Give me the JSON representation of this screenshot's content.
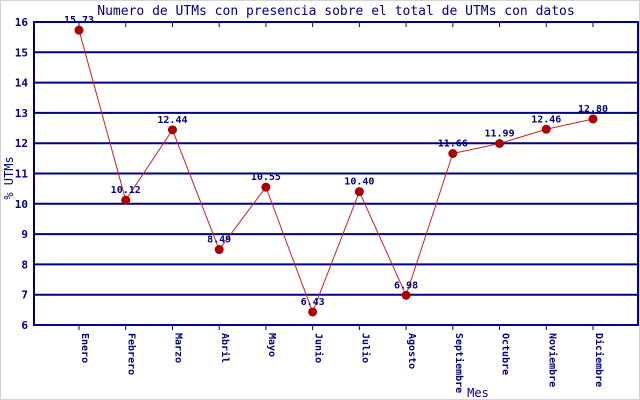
{
  "chart_data": {
    "type": "line",
    "title": "Numero de UTMs con presencia sobre el total de UTMs con datos",
    "xlabel": "Mes",
    "ylabel": "% UTMs",
    "categories": [
      "Enero",
      "Febrero",
      "Marzo",
      "Abril",
      "Mayo",
      "Junio",
      "Julio",
      "Agosto",
      "Septiembre",
      "Octubre",
      "Noviembre",
      "Diciembre"
    ],
    "values": [
      15.73,
      10.12,
      12.44,
      8.49,
      10.55,
      6.43,
      10.4,
      6.98,
      11.66,
      11.99,
      12.46,
      12.8
    ],
    "value_labels": [
      "15.73",
      "10.12",
      "12.44",
      "8.49",
      "10.55",
      "6.43",
      "10.40",
      "6.98",
      "11.66",
      "11.99",
      "12.46",
      "12.80"
    ],
    "ylim": [
      6,
      16
    ],
    "ytick_step": 1,
    "ytick_labels": [
      "6",
      "7",
      "8",
      "9",
      "10",
      "11",
      "12",
      "13",
      "14",
      "15",
      "16"
    ],
    "grid": true,
    "legend": "none",
    "colors": {
      "background": "#ffffff",
      "axis": "#000080",
      "grid": "#000080",
      "text": "#000080",
      "line": "#cc2222",
      "marker": "#aa0000"
    }
  }
}
